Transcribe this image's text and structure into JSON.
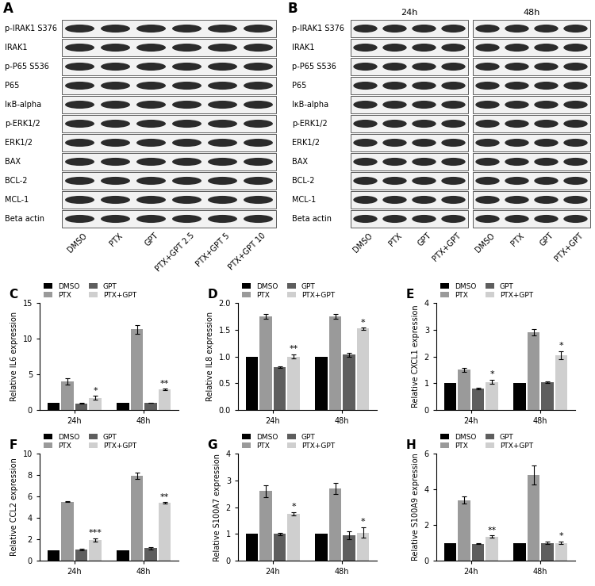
{
  "blots": [
    {
      "panel": "A",
      "rows": [
        "p-IRAK1 S376",
        "IRAK1",
        "p-P65 S536",
        "P65",
        "IκB-alpha",
        "p-ERK1/2",
        "ERK1/2",
        "BAX",
        "BCL-2",
        "MCL-1",
        "Beta actin"
      ],
      "groups": [
        {
          "lanes": [
            "DMSO",
            "PTX",
            "GPT",
            "PTX+GPT 2.5",
            "PTX+GPT 5",
            "PTX+GPT 10"
          ]
        }
      ]
    },
    {
      "panel": "B",
      "rows": [
        "p-IRAK1 S376",
        "IRAK1",
        "p-P65 S536",
        "P65",
        "IκB-alpha",
        "p-ERK1/2",
        "ERK1/2",
        "BAX",
        "BCL-2",
        "MCL-1",
        "Beta actin"
      ],
      "groups": [
        {
          "title": "24h",
          "lanes": [
            "DMSO",
            "PTX",
            "GPT",
            "PTX+GPT"
          ]
        },
        {
          "title": "48h",
          "lanes": [
            "DMSO",
            "PTX",
            "GPT",
            "PTX+GPT"
          ]
        }
      ]
    }
  ],
  "chart_data": [
    {
      "type": "bar",
      "panel": "C",
      "y_label": "Relative IL6 expression",
      "categories": [
        "24h",
        "48h"
      ],
      "series": [
        {
          "name": "DMSO",
          "color": "#000000",
          "values": [
            1,
            1
          ]
        },
        {
          "name": "PTX",
          "color": "#9a9a9a",
          "values": [
            4.0,
            11.3
          ],
          "errors": [
            0.4,
            0.6
          ]
        },
        {
          "name": "GPT",
          "color": "#5e5e5e",
          "values": [
            0.9,
            1.0
          ],
          "errors": [
            0.05,
            0.05
          ]
        },
        {
          "name": "PTX+GPT",
          "color": "#cfcfcf",
          "values": [
            1.7,
            2.9
          ],
          "errors": [
            0.3,
            0.1
          ]
        }
      ],
      "annotations": [
        {
          "text": "*",
          "category": "24h",
          "series": "PTX+GPT"
        },
        {
          "text": "**",
          "category": "48h",
          "series": "PTX+GPT"
        }
      ],
      "ylim": [
        0,
        15
      ],
      "yticks": [
        0,
        5,
        10,
        15
      ],
      "legend": "top",
      "grid": false
    },
    {
      "type": "bar",
      "panel": "D",
      "y_label": "Relative IL8 expression",
      "categories": [
        "24h",
        "48h"
      ],
      "series": [
        {
          "name": "DMSO",
          "color": "#000000",
          "values": [
            1,
            1
          ]
        },
        {
          "name": "PTX",
          "color": "#9a9a9a",
          "values": [
            1.75,
            1.75
          ],
          "errors": [
            0.05,
            0.05
          ]
        },
        {
          "name": "GPT",
          "color": "#5e5e5e",
          "values": [
            0.8,
            1.03
          ],
          "errors": [
            0.02,
            0.03
          ]
        },
        {
          "name": "PTX+GPT",
          "color": "#cfcfcf",
          "values": [
            1.0,
            1.52
          ],
          "errors": [
            0.04,
            0.02
          ]
        }
      ],
      "annotations": [
        {
          "text": "**",
          "category": "24h",
          "series": "PTX+GPT"
        },
        {
          "text": "*",
          "category": "48h",
          "series": "PTX+GPT"
        }
      ],
      "ylim": [
        0,
        2
      ],
      "yticks": [
        {
          "value": 0,
          "label": "0.0"
        },
        {
          "value": 0.5,
          "label": "0.5"
        },
        {
          "value": 1,
          "label": "1.0"
        },
        {
          "value": 1.5,
          "label": "1.5"
        },
        {
          "value": 2,
          "label": "2.0"
        }
      ],
      "legend": "top",
      "grid": false
    },
    {
      "type": "bar",
      "panel": "E",
      "y_label": "Relative CXCL1 expression",
      "categories": [
        "24h",
        "48h"
      ],
      "series": [
        {
          "name": "DMSO",
          "color": "#000000",
          "values": [
            1,
            1
          ]
        },
        {
          "name": "PTX",
          "color": "#9a9a9a",
          "values": [
            1.5,
            2.9
          ],
          "errors": [
            0.07,
            0.12
          ]
        },
        {
          "name": "GPT",
          "color": "#5e5e5e",
          "values": [
            0.8,
            1.03
          ],
          "errors": [
            0.02,
            0.03
          ]
        },
        {
          "name": "PTX+GPT",
          "color": "#cfcfcf",
          "values": [
            1.05,
            2.05
          ],
          "errors": [
            0.08,
            0.15
          ]
        }
      ],
      "annotations": [
        {
          "text": "*",
          "category": "24h",
          "series": "PTX+GPT"
        },
        {
          "text": "*",
          "category": "48h",
          "series": "PTX+GPT"
        }
      ],
      "ylim": [
        0,
        4
      ],
      "yticks": [
        0,
        1,
        2,
        3,
        4
      ],
      "legend": "top",
      "grid": false
    },
    {
      "type": "bar",
      "panel": "F",
      "y_label": "Relative CCL2 expression",
      "categories": [
        "24h",
        "48h"
      ],
      "series": [
        {
          "name": "DMSO",
          "color": "#000000",
          "values": [
            1,
            1
          ]
        },
        {
          "name": "PTX",
          "color": "#9a9a9a",
          "values": [
            5.5,
            7.9
          ],
          "errors": [
            0.05,
            0.3
          ]
        },
        {
          "name": "GPT",
          "color": "#5e5e5e",
          "values": [
            1.05,
            1.15
          ],
          "errors": [
            0.05,
            0.1
          ]
        },
        {
          "name": "PTX+GPT",
          "color": "#cfcfcf",
          "values": [
            1.95,
            5.4
          ],
          "errors": [
            0.15,
            0.05
          ]
        }
      ],
      "annotations": [
        {
          "text": "***",
          "category": "24h",
          "series": "PTX+GPT"
        },
        {
          "text": "**",
          "category": "48h",
          "series": "PTX+GPT"
        }
      ],
      "ylim": [
        0,
        10
      ],
      "yticks": [
        0,
        2,
        4,
        6,
        8,
        10
      ],
      "legend": "top",
      "grid": false
    },
    {
      "type": "bar",
      "panel": "G",
      "y_label": "Relative S100A7 expression",
      "categories": [
        "24h",
        "48h"
      ],
      "series": [
        {
          "name": "DMSO",
          "color": "#000000",
          "values": [
            1,
            1
          ]
        },
        {
          "name": "PTX",
          "color": "#9a9a9a",
          "values": [
            2.6,
            2.7
          ],
          "errors": [
            0.22,
            0.2
          ]
        },
        {
          "name": "GPT",
          "color": "#5e5e5e",
          "values": [
            1.0,
            0.95
          ],
          "errors": [
            0.05,
            0.15
          ]
        },
        {
          "name": "PTX+GPT",
          "color": "#cfcfcf",
          "values": [
            1.75,
            1.05
          ],
          "errors": [
            0.07,
            0.2
          ]
        }
      ],
      "annotations": [
        {
          "text": "*",
          "category": "24h",
          "series": "PTX+GPT"
        },
        {
          "text": "*",
          "category": "48h",
          "series": "PTX+GPT"
        }
      ],
      "ylim": [
        0,
        4
      ],
      "yticks": [
        0,
        1,
        2,
        3,
        4
      ],
      "legend": "top",
      "grid": false
    },
    {
      "type": "bar",
      "panel": "H",
      "y_label": "Relative S100A9 expression",
      "categories": [
        "24h",
        "48h"
      ],
      "series": [
        {
          "name": "DMSO",
          "color": "#000000",
          "values": [
            1,
            1
          ]
        },
        {
          "name": "PTX",
          "color": "#9a9a9a",
          "values": [
            3.4,
            4.8
          ],
          "errors": [
            0.2,
            0.55
          ]
        },
        {
          "name": "GPT",
          "color": "#5e5e5e",
          "values": [
            0.95,
            1.0
          ],
          "errors": [
            0.03,
            0.05
          ]
        },
        {
          "name": "PTX+GPT",
          "color": "#cfcfcf",
          "values": [
            1.35,
            1.0
          ],
          "errors": [
            0.07,
            0.08
          ]
        }
      ],
      "annotations": [
        {
          "text": "**",
          "category": "24h",
          "series": "PTX+GPT"
        },
        {
          "text": "*",
          "category": "48h",
          "series": "PTX+GPT"
        }
      ],
      "ylim": [
        0,
        6
      ],
      "yticks": [
        0,
        2,
        4,
        6
      ],
      "legend": "top",
      "grid": false
    }
  ]
}
